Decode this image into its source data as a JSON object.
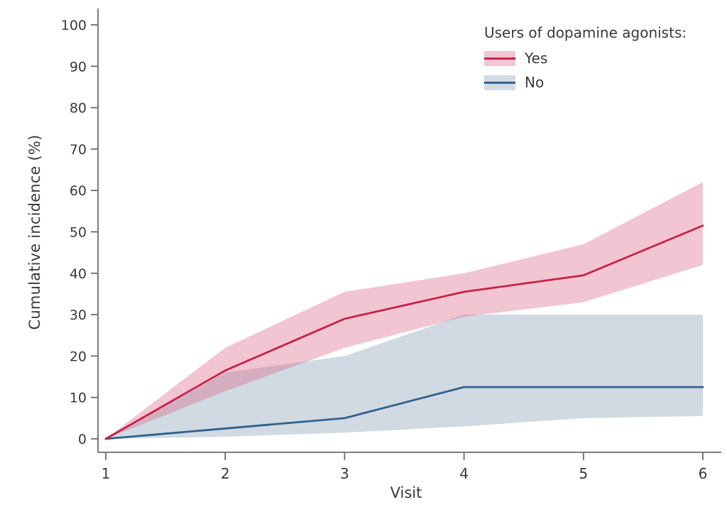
{
  "figure": {
    "background": "#ffffff"
  },
  "chart_data": {
    "type": "line",
    "title": "",
    "xlabel": "Visit",
    "ylabel": "Cumulative incidence (%)",
    "x": [
      1,
      2,
      3,
      4,
      5,
      6
    ],
    "xticks": [
      1,
      2,
      3,
      4,
      5,
      6
    ],
    "yticks": [
      0,
      10,
      20,
      30,
      40,
      50,
      60,
      70,
      80,
      90,
      100
    ],
    "xlim": [
      1,
      6
    ],
    "ylim": [
      0,
      100
    ],
    "grid": false,
    "legend": {
      "title": "Users of dopamine agonists:",
      "position": "top-right"
    },
    "series": [
      {
        "name": "Yes",
        "line_color": "#c72147",
        "band_fill": "rgba(219,90,128,0.35)",
        "swatch_fill": "#f2c6d2",
        "values": [
          0,
          16.5,
          29,
          35.5,
          39.5,
          51.5
        ],
        "band_upper": [
          0,
          22,
          35.5,
          40,
          47,
          62
        ],
        "band_lower": [
          0,
          11.5,
          22,
          29.5,
          33,
          42
        ]
      },
      {
        "name": "No",
        "line_color": "#31618e",
        "band_fill": "rgba(116,144,168,0.33)",
        "swatch_fill": "#d3dce4",
        "values": [
          0,
          2.5,
          5,
          12.5,
          12.5,
          12.5
        ],
        "band_upper": [
          0,
          16,
          20,
          30,
          30,
          30
        ],
        "band_lower": [
          0,
          0.5,
          1.5,
          3,
          5,
          5.5
        ]
      }
    ],
    "axis_color": "#6b6b6b",
    "text_color": "#3a3a3a"
  }
}
